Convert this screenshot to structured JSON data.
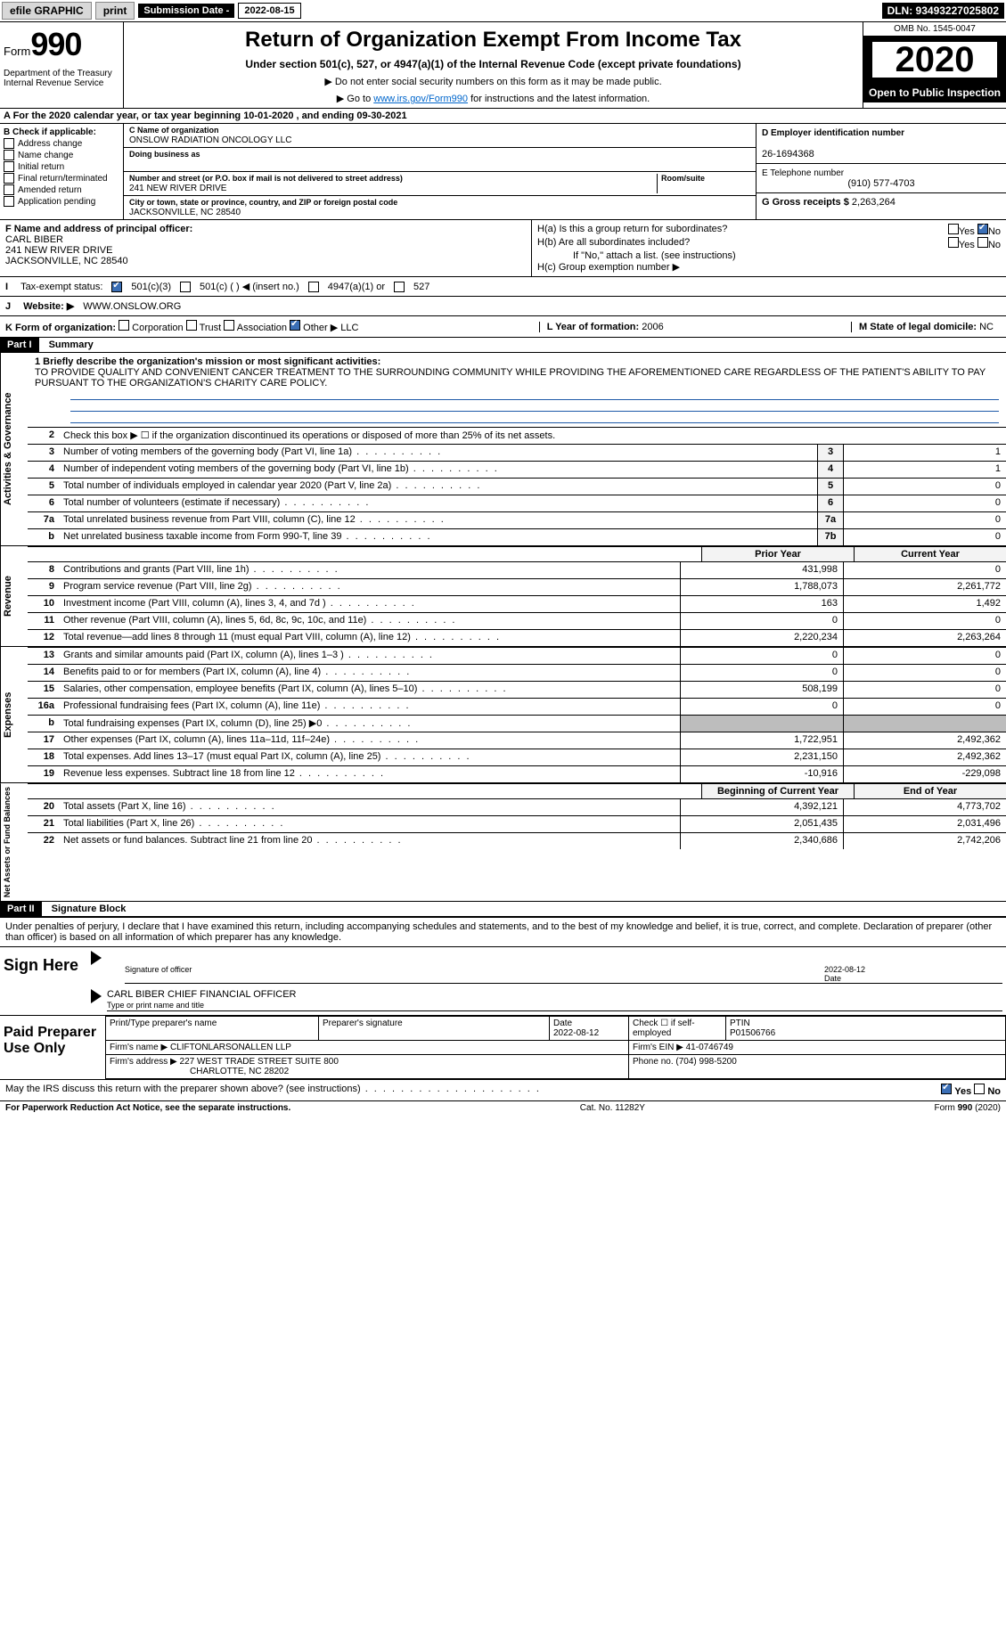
{
  "topbar": {
    "efile": "efile GRAPHIC",
    "print": "print",
    "sub_lbl": "Submission Date - ",
    "sub_val": "2022-08-15",
    "dln": "DLN: 93493227025802"
  },
  "header": {
    "form_lbl": "Form",
    "form_no": "990",
    "title": "Return of Organization Exempt From Income Tax",
    "sub": "Under section 501(c), 527, or 4947(a)(1) of the Internal Revenue Code (except private foundations)",
    "note1": "▶ Do not enter social security numbers on this form as it may be made public.",
    "note2a": "▶ Go to ",
    "note2link": "www.irs.gov/Form990",
    "note2b": " for instructions and the latest information.",
    "dept": "Department of the Treasury\nInternal Revenue Service",
    "omb": "OMB No. 1545-0047",
    "year": "2020",
    "open": "Open to Public Inspection"
  },
  "A": {
    "text": "A For the 2020 calendar year, or tax year beginning 10-01-2020    , and ending 09-30-2021"
  },
  "B": {
    "title": "B Check if applicable:",
    "items": [
      "Address change",
      "Name change",
      "Initial return",
      "Final return/terminated",
      "Amended return",
      "Application pending"
    ]
  },
  "C": {
    "name_lbl": "C Name of organization",
    "name": "ONSLOW RADIATION ONCOLOGY LLC",
    "dba_lbl": "Doing business as",
    "addr_lbl": "Number and street (or P.O. box if mail is not delivered to street address)",
    "room_lbl": "Room/suite",
    "addr": "241 NEW RIVER DRIVE",
    "city_lbl": "City or town, state or province, country, and ZIP or foreign postal code",
    "city": "JACKSONVILLE, NC  28540"
  },
  "D": {
    "lbl": "D Employer identification number",
    "val": "26-1694368"
  },
  "E": {
    "lbl": "E Telephone number",
    "val": "(910) 577-4703"
  },
  "G": {
    "lbl": "G Gross receipts $",
    "val": "2,263,264"
  },
  "F": {
    "lbl": "F  Name and address of principal officer:",
    "name": "CARL BIBER",
    "addr1": "241 NEW RIVER DRIVE",
    "addr2": "JACKSONVILLE, NC  28540"
  },
  "H": {
    "a": "H(a)  Is this a group return for subordinates?",
    "b": "H(b)  Are all subordinates included?",
    "bnote": "If \"No,\" attach a list. (see instructions)",
    "c": "H(c)  Group exemption number ▶",
    "yes": "Yes",
    "no": "No"
  },
  "I": {
    "lbl": "Tax-exempt status:",
    "o1": "501(c)(3)",
    "o2": "501(c) (   ) ◀ (insert no.)",
    "o3": "4947(a)(1) or",
    "o4": "527"
  },
  "J": {
    "lbl": "Website: ▶",
    "val": "WWW.ONSLOW.ORG"
  },
  "K": {
    "lbl": "K Form of organization:",
    "opts": [
      "Corporation",
      "Trust",
      "Association",
      "Other ▶"
    ],
    "other": "LLC"
  },
  "L": {
    "lbl": "L Year of formation:",
    "val": "2006"
  },
  "M": {
    "lbl": "M State of legal domicile:",
    "val": "NC"
  },
  "part1": {
    "hdr": "Part I",
    "title": "Summary"
  },
  "mission": {
    "lbl": "1  Briefly describe the organization's mission or most significant activities:",
    "txt": "TO PROVIDE QUALITY AND CONVENIENT CANCER TREATMENT TO THE SURROUNDING COMMUNITY WHILE PROVIDING THE AFOREMENTIONED CARE REGARDLESS OF THE PATIENT'S ABILITY TO PAY PURSUANT TO THE ORGANIZATION'S CHARITY CARE POLICY."
  },
  "gov_lines": [
    {
      "n": "2",
      "t": "Check this box ▶ ☐  if the organization discontinued its operations or disposed of more than 25% of its net assets.",
      "box": "",
      "v": ""
    },
    {
      "n": "3",
      "t": "Number of voting members of the governing body (Part VI, line 1a)",
      "box": "3",
      "v": "1"
    },
    {
      "n": "4",
      "t": "Number of independent voting members of the governing body (Part VI, line 1b)",
      "box": "4",
      "v": "1"
    },
    {
      "n": "5",
      "t": "Total number of individuals employed in calendar year 2020 (Part V, line 2a)",
      "box": "5",
      "v": "0"
    },
    {
      "n": "6",
      "t": "Total number of volunteers (estimate if necessary)",
      "box": "6",
      "v": "0"
    },
    {
      "n": "7a",
      "t": "Total unrelated business revenue from Part VIII, column (C), line 12",
      "box": "7a",
      "v": "0"
    },
    {
      "n": "b",
      "t": "Net unrelated business taxable income from Form 990-T, line 39",
      "box": "7b",
      "v": "0"
    }
  ],
  "col_hdr": {
    "prior": "Prior Year",
    "curr": "Current Year"
  },
  "rev": [
    {
      "n": "8",
      "t": "Contributions and grants (Part VIII, line 1h)",
      "p": "431,998",
      "c": "0"
    },
    {
      "n": "9",
      "t": "Program service revenue (Part VIII, line 2g)",
      "p": "1,788,073",
      "c": "2,261,772"
    },
    {
      "n": "10",
      "t": "Investment income (Part VIII, column (A), lines 3, 4, and 7d )",
      "p": "163",
      "c": "1,492"
    },
    {
      "n": "11",
      "t": "Other revenue (Part VIII, column (A), lines 5, 6d, 8c, 9c, 10c, and 11e)",
      "p": "0",
      "c": "0"
    },
    {
      "n": "12",
      "t": "Total revenue—add lines 8 through 11 (must equal Part VIII, column (A), line 12)",
      "p": "2,220,234",
      "c": "2,263,264"
    }
  ],
  "exp": [
    {
      "n": "13",
      "t": "Grants and similar amounts paid (Part IX, column (A), lines 1–3 )",
      "p": "0",
      "c": "0"
    },
    {
      "n": "14",
      "t": "Benefits paid to or for members (Part IX, column (A), line 4)",
      "p": "0",
      "c": "0"
    },
    {
      "n": "15",
      "t": "Salaries, other compensation, employee benefits (Part IX, column (A), lines 5–10)",
      "p": "508,199",
      "c": "0"
    },
    {
      "n": "16a",
      "t": "Professional fundraising fees (Part IX, column (A), line 11e)",
      "p": "0",
      "c": "0"
    },
    {
      "n": "b",
      "t": "Total fundraising expenses (Part IX, column (D), line 25) ▶0",
      "p": "",
      "c": "",
      "grey": true
    },
    {
      "n": "17",
      "t": "Other expenses (Part IX, column (A), lines 11a–11d, 11f–24e)",
      "p": "1,722,951",
      "c": "2,492,362"
    },
    {
      "n": "18",
      "t": "Total expenses. Add lines 13–17 (must equal Part IX, column (A), line 25)",
      "p": "2,231,150",
      "c": "2,492,362"
    },
    {
      "n": "19",
      "t": "Revenue less expenses. Subtract line 18 from line 12",
      "p": "-10,916",
      "c": "-229,098"
    }
  ],
  "na_hdr": {
    "b": "Beginning of Current Year",
    "e": "End of Year"
  },
  "na": [
    {
      "n": "20",
      "t": "Total assets (Part X, line 16)",
      "p": "4,392,121",
      "c": "4,773,702"
    },
    {
      "n": "21",
      "t": "Total liabilities (Part X, line 26)",
      "p": "2,051,435",
      "c": "2,031,496"
    },
    {
      "n": "22",
      "t": "Net assets or fund balances. Subtract line 21 from line 20",
      "p": "2,340,686",
      "c": "2,742,206"
    }
  ],
  "part2": {
    "hdr": "Part II",
    "title": "Signature Block"
  },
  "penalty": "Under penalties of perjury, I declare that I have examined this return, including accompanying schedules and statements, and to the best of my knowledge and belief, it is true, correct, and complete. Declaration of preparer (other than officer) is based on all information of which preparer has any knowledge.",
  "sign": {
    "lbl": "Sign Here",
    "sig_lbl": "Signature of officer",
    "date_lbl": "Date",
    "date": "2022-08-12",
    "name": "CARL BIBER  CHIEF FINANCIAL OFFICER",
    "name_lbl": "Type or print name and title"
  },
  "prep": {
    "lbl": "Paid Preparer Use Only",
    "h1": "Print/Type preparer's name",
    "h2": "Preparer's signature",
    "h3": "Date",
    "date": "2022-08-12",
    "h4": "Check ☐ if self-employed",
    "h5": "PTIN",
    "ptin": "P01506766",
    "firm_lbl": "Firm's name    ▶",
    "firm": "CLIFTONLARSONALLEN LLP",
    "ein_lbl": "Firm's EIN ▶",
    "ein": "41-0746749",
    "addr_lbl": "Firm's address ▶",
    "addr1": "227 WEST TRADE STREET SUITE 800",
    "addr2": "CHARLOTTE, NC  28202",
    "ph_lbl": "Phone no.",
    "ph": "(704) 998-5200"
  },
  "discuss": {
    "q": "May the IRS discuss this return with the preparer shown above? (see instructions)",
    "yes": "Yes",
    "no": "No"
  },
  "footer": {
    "l": "For Paperwork Reduction Act Notice, see the separate instructions.",
    "m": "Cat. No. 11282Y",
    "r": "Form 990 (2020)"
  },
  "vtabs": {
    "gov": "Activities & Governance",
    "rev": "Revenue",
    "exp": "Expenses",
    "na": "Net Assets or Fund Balances"
  }
}
